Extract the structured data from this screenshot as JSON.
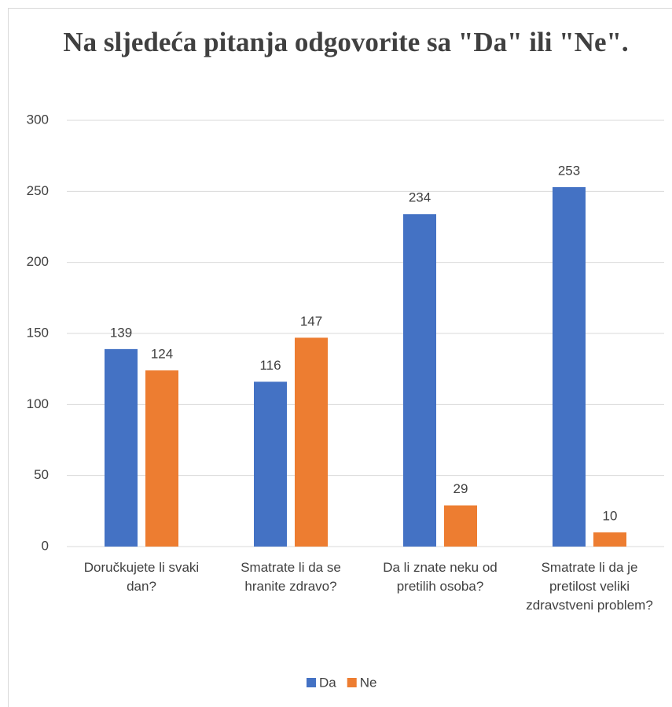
{
  "chart_data": {
    "type": "bar",
    "title": "Na sljedeća pitanja odgovorite sa \"Da\" ili \"Ne\".",
    "categories": [
      "Doručkujete li svaki dan?",
      "Smatrate li da se hranite zdravo?",
      "Da li znate neku od pretilih osoba?",
      "Smatrate li da je pretilost veliki zdravstveni problem?"
    ],
    "series": [
      {
        "name": "Da",
        "color": "#4472c4",
        "values": [
          139,
          116,
          234,
          253
        ]
      },
      {
        "name": "Ne",
        "color": "#ed7d31",
        "values": [
          124,
          147,
          29,
          10
        ]
      }
    ],
    "ylim": [
      0,
      300
    ],
    "yticks": [
      0,
      50,
      100,
      150,
      200,
      250,
      300
    ],
    "grid": true,
    "legend": "bottom"
  }
}
